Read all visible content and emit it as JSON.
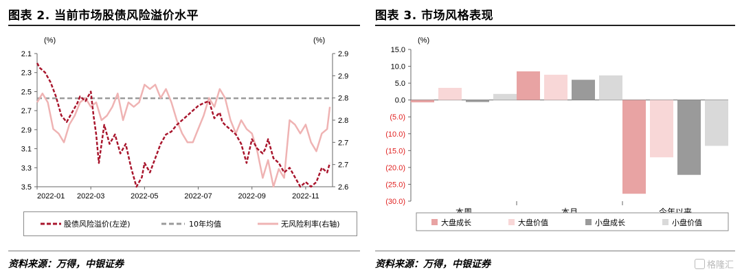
{
  "left_panel": {
    "title": "图表 2. 当前市场股债风险溢价水平",
    "source": "资料来源：万得，中银证券",
    "legend": [
      {
        "label": "股债风险溢价(左逆)",
        "color": "#a8152c",
        "style": "dashed"
      },
      {
        "label": "10年均值",
        "color": "#9a9a9a",
        "style": "dashed"
      },
      {
        "label": "无风险利率(右轴)",
        "color": "#efb3b3",
        "style": "solid"
      }
    ]
  },
  "right_panel": {
    "title": "图表 3. 市场风格表现",
    "source": "资料来源：万得，中银证券",
    "legend": [
      {
        "label": "大盘成长",
        "color": "#e8a3a3"
      },
      {
        "label": "大盘价值",
        "color": "#f8d7d7"
      },
      {
        "label": "小盘成长",
        "color": "#9a9a9a"
      },
      {
        "label": "小盘价值",
        "color": "#d9d9d9"
      }
    ]
  },
  "watermark": "格隆汇",
  "chart_data": [
    {
      "type": "line",
      "left_unit": "(%)",
      "right_unit": "(%)",
      "x_ticks": [
        "2022-01",
        "2022-03",
        "2022-05",
        "2022-07",
        "2022-09",
        "2022-11"
      ],
      "left_axis": {
        "inverted": true,
        "ylim": [
          2.1,
          3.5
        ],
        "ticks": [
          "2.1",
          "2.3",
          "2.5",
          "2.7",
          "2.9",
          "3.1",
          "3.3",
          "3.5"
        ]
      },
      "right_axis": {
        "ylim": [
          2.6,
          2.9
        ],
        "ticks": [
          "2.9",
          "2.9",
          "2.8",
          "2.8",
          "2.7",
          "2.7",
          "2.6"
        ]
      },
      "ten_year_mean": 2.57,
      "series": [
        {
          "name": "股债风险溢价(左逆)",
          "axis": "left",
          "x": [
            0,
            0.1,
            0.3,
            0.5,
            0.7,
            0.9,
            1.1,
            1.3,
            1.5,
            1.6,
            1.8,
            2.0,
            2.1,
            2.2,
            2.3,
            2.5,
            2.7,
            2.9,
            3.1,
            3.3,
            3.5,
            3.7,
            3.9,
            4.0,
            4.1,
            4.2,
            4.4,
            4.6,
            4.8,
            5.0,
            5.2,
            5.4,
            5.6,
            5.8,
            6.0,
            6.2,
            6.4,
            6.6,
            6.8,
            6.9,
            7.0,
            7.2,
            7.4,
            7.6,
            7.8,
            8.0,
            8.2,
            8.4,
            8.5,
            8.6,
            8.8,
            9.0,
            9.2,
            9.4,
            9.6,
            9.8,
            10.0,
            10.2,
            10.4,
            10.6,
            10.8,
            10.9
          ],
          "values": [
            2.2,
            2.25,
            2.3,
            2.4,
            2.55,
            2.75,
            2.82,
            2.72,
            2.62,
            2.55,
            2.6,
            2.5,
            2.75,
            2.95,
            3.25,
            2.85,
            3.05,
            2.95,
            3.15,
            3.05,
            3.3,
            3.5,
            3.4,
            3.25,
            3.3,
            3.35,
            3.2,
            3.05,
            2.95,
            2.92,
            2.85,
            2.8,
            2.75,
            2.7,
            2.65,
            2.62,
            2.6,
            2.78,
            2.72,
            2.82,
            2.85,
            2.9,
            2.95,
            3.05,
            3.25,
            3.0,
            3.1,
            3.15,
            3.1,
            3.0,
            3.2,
            3.25,
            3.35,
            3.3,
            3.4,
            3.5,
            3.45,
            3.5,
            3.45,
            3.3,
            3.35,
            3.25
          ]
        },
        {
          "name": "无风险利率(右轴)",
          "axis": "right",
          "x": [
            0,
            0.2,
            0.4,
            0.6,
            0.8,
            0.9,
            1.0,
            1.2,
            1.4,
            1.6,
            1.8,
            2.0,
            2.2,
            2.4,
            2.6,
            2.8,
            3.0,
            3.2,
            3.4,
            3.6,
            3.8,
            4.0,
            4.2,
            4.4,
            4.6,
            4.8,
            5.0,
            5.2,
            5.4,
            5.6,
            5.8,
            6.0,
            6.2,
            6.4,
            6.6,
            6.8,
            7.0,
            7.2,
            7.4,
            7.6,
            7.8,
            8.0,
            8.2,
            8.4,
            8.6,
            8.8,
            9.0,
            9.2,
            9.4,
            9.6,
            9.8,
            10.0,
            10.2,
            10.4,
            10.6,
            10.8,
            10.9
          ],
          "values": [
            2.79,
            2.81,
            2.79,
            2.73,
            2.72,
            2.71,
            2.7,
            2.74,
            2.76,
            2.79,
            2.8,
            2.78,
            2.79,
            2.75,
            2.76,
            2.78,
            2.81,
            2.75,
            2.79,
            2.78,
            2.79,
            2.83,
            2.82,
            2.83,
            2.8,
            2.82,
            2.79,
            2.75,
            2.72,
            2.7,
            2.7,
            2.73,
            2.76,
            2.8,
            2.78,
            2.82,
            2.8,
            2.75,
            2.72,
            2.75,
            2.73,
            2.72,
            2.68,
            2.62,
            2.66,
            2.6,
            2.64,
            2.62,
            2.75,
            2.74,
            2.72,
            2.74,
            2.7,
            2.68,
            2.72,
            2.73,
            2.78
          ]
        }
      ]
    },
    {
      "type": "bar",
      "unit": "(%)",
      "categories": [
        "本周",
        "本月",
        "今年以来"
      ],
      "ylim": [
        -30,
        15
      ],
      "y_ticks": [
        "15.0",
        "10.0",
        "5.0",
        "0.0",
        "(5.0)",
        "(10.0)",
        "(15.0)",
        "(20.0)",
        "(25.0)",
        "(30.0)"
      ],
      "series": [
        {
          "name": "大盘成长",
          "values": [
            -0.7,
            8.5,
            -27.8
          ]
        },
        {
          "name": "大盘价值",
          "values": [
            3.6,
            7.5,
            -17.0
          ]
        },
        {
          "name": "小盘成长",
          "values": [
            -0.6,
            6.0,
            -22.2
          ]
        },
        {
          "name": "小盘价值",
          "values": [
            1.8,
            7.3,
            -13.6
          ]
        }
      ]
    }
  ]
}
